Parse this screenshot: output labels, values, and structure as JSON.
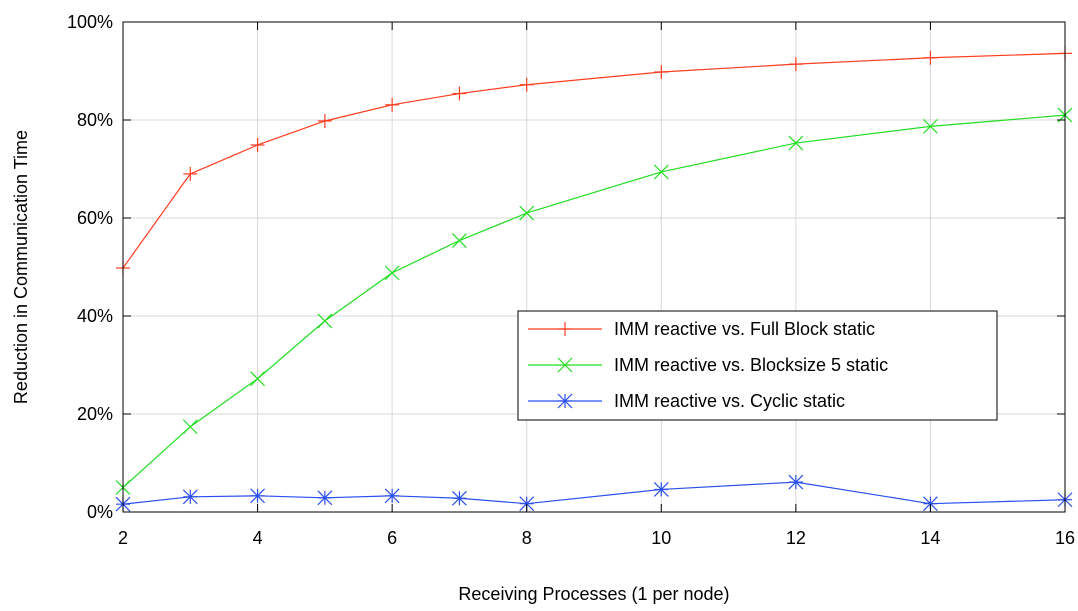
{
  "chart_data": {
    "type": "line",
    "title": "",
    "xlabel": "Receiving Processes (1 per node)",
    "ylabel": "Reduction in Communication Time",
    "xlim": [
      2,
      16
    ],
    "ylim": [
      0,
      100
    ],
    "x_ticks": [
      2,
      4,
      6,
      8,
      10,
      12,
      14,
      16
    ],
    "x_tick_labels": [
      "2",
      "4",
      "6",
      "8",
      "10",
      "12",
      "14",
      "16"
    ],
    "y_ticks": [
      0,
      20,
      40,
      60,
      80,
      100
    ],
    "y_tick_labels": [
      "0%",
      "20%",
      "40%",
      "60%",
      "80%",
      "100%"
    ],
    "grid": true,
    "legend_position": "center-right",
    "series": [
      {
        "name": "IMM reactive vs. Full Block static",
        "color": "#ff3c1e",
        "marker": "plus",
        "x": [
          2,
          3,
          4,
          5,
          6,
          7,
          8,
          10,
          12,
          14,
          16
        ],
        "values": [
          49.8,
          69.0,
          74.9,
          79.8,
          83.1,
          85.4,
          87.2,
          89.8,
          91.4,
          92.7,
          93.6
        ]
      },
      {
        "name": "IMM reactive vs. Blocksize 5 static",
        "color": "#22dd22",
        "marker": "cross",
        "x": [
          2,
          3,
          4,
          5,
          6,
          7,
          8,
          10,
          12,
          14,
          16
        ],
        "values": [
          5.0,
          17.4,
          27.2,
          39.0,
          48.8,
          55.4,
          61.0,
          69.4,
          75.3,
          78.7,
          81.0
        ]
      },
      {
        "name": "IMM reactive vs. Cyclic static",
        "color": "#2a4ff0",
        "marker": "star",
        "x": [
          2,
          3,
          4,
          5,
          6,
          7,
          8,
          10,
          12,
          14,
          16
        ],
        "values": [
          1.6,
          3.1,
          3.3,
          2.9,
          3.3,
          2.8,
          1.7,
          4.6,
          6.1,
          1.7,
          2.5
        ]
      }
    ]
  }
}
